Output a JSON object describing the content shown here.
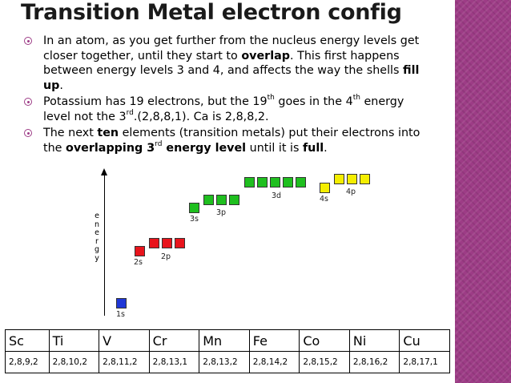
{
  "slide": {
    "title": "Transition Metal electron config",
    "accent_color": "#9d3c86"
  },
  "bullets": [
    {
      "text_1": "In an atom, as you get further from the nucleus energy levels get closer together, until they start to ",
      "bold_1": "overlap",
      "text_2": ".  This first happens between energy levels 3 and 4, and affects the way the shells ",
      "bold_2": "fill up",
      "text_3": "."
    },
    {
      "text_1": "Potassium has 19 electrons, but the 19",
      "sup_1": "th",
      "text_2": " goes in the 4",
      "sup_2": "th",
      "text_3": " energy level not the 3",
      "sup_3": "rd",
      "text_4": ".(2,8,8,1). Ca is 2,8,8,2."
    },
    {
      "text_1": "The next ",
      "bold_1": "ten",
      "text_2": " elements (transition metals) put their electrons into the ",
      "bold_2": "overlapping 3",
      "sup_1": "rd",
      "bold_3": " energy level",
      "text_3": " until it is ",
      "bold_4": "full",
      "text_4": "."
    }
  ],
  "diagram": {
    "y_axis_label": [
      "e",
      "n",
      "e",
      "r",
      "g",
      "y"
    ],
    "orbitals": {
      "s1": "1s",
      "s2": "2s",
      "p2": "2p",
      "s3": "3s",
      "p3": "3p",
      "d3": "3d",
      "s4": "4s",
      "p4": "4p"
    },
    "colors": {
      "s1": "#1f37d6",
      "level2": "#e8141c",
      "level3": "#1fbf1f",
      "level4": "#f4ee00"
    }
  },
  "table": {
    "elements": [
      "Sc",
      "Ti",
      "V",
      "Cr",
      "Mn",
      "Fe",
      "Co",
      "Ni",
      "Cu"
    ],
    "configs": [
      "2,8,9,2",
      "2,8,10,2",
      "2,8,11,2",
      "2,8,13,1",
      "2,8,13,2",
      "2,8,14,2",
      "2,8,15,2",
      "2,8,16,2",
      "2,8,17,1"
    ]
  }
}
